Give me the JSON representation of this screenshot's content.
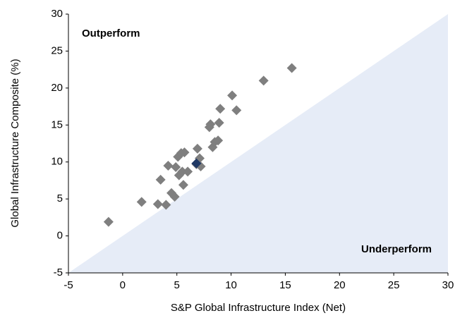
{
  "chart_data": {
    "type": "scatter",
    "xlabel": "S&P Global Infrastructure Index (Net)",
    "ylabel": "Global Infrastructure Composite (%)",
    "annotations": [
      "Outperform",
      "Underperform"
    ],
    "xlim": [
      -5,
      30
    ],
    "ylim": [
      -5,
      30
    ],
    "xticks": [
      -5,
      0,
      5,
      10,
      15,
      20,
      25,
      30
    ],
    "yticks": [
      -5,
      0,
      5,
      10,
      15,
      20,
      25,
      30
    ],
    "grid": false,
    "shade_color": "#e6ecf7",
    "series": [
      {
        "color": "#7f7f7f",
        "x": [
          -1.3,
          1.75,
          3.25,
          4.0,
          3.5,
          4.2,
          4.5,
          4.8,
          4.9,
          5.1,
          5.2,
          5.4,
          5.7,
          5.5,
          5.6,
          6.0,
          6.8,
          6.9,
          7.1,
          7.2,
          8.0,
          8.1,
          8.3,
          8.5,
          8.8,
          8.9,
          9.0,
          10.1,
          10.5,
          13.0,
          15.6
        ],
        "values": [
          1.9,
          4.6,
          4.3,
          4.2,
          7.6,
          9.5,
          5.8,
          5.3,
          9.3,
          10.7,
          8.2,
          11.2,
          11.3,
          8.7,
          6.9,
          8.7,
          9.7,
          11.8,
          10.5,
          9.4,
          14.7,
          15.1,
          12.0,
          12.7,
          12.9,
          15.3,
          17.2,
          19.0,
          17.0,
          21.0,
          22.7
        ]
      },
      {
        "color": "#1f3864",
        "x": [
          6.8
        ],
        "values": [
          9.8
        ]
      }
    ]
  }
}
